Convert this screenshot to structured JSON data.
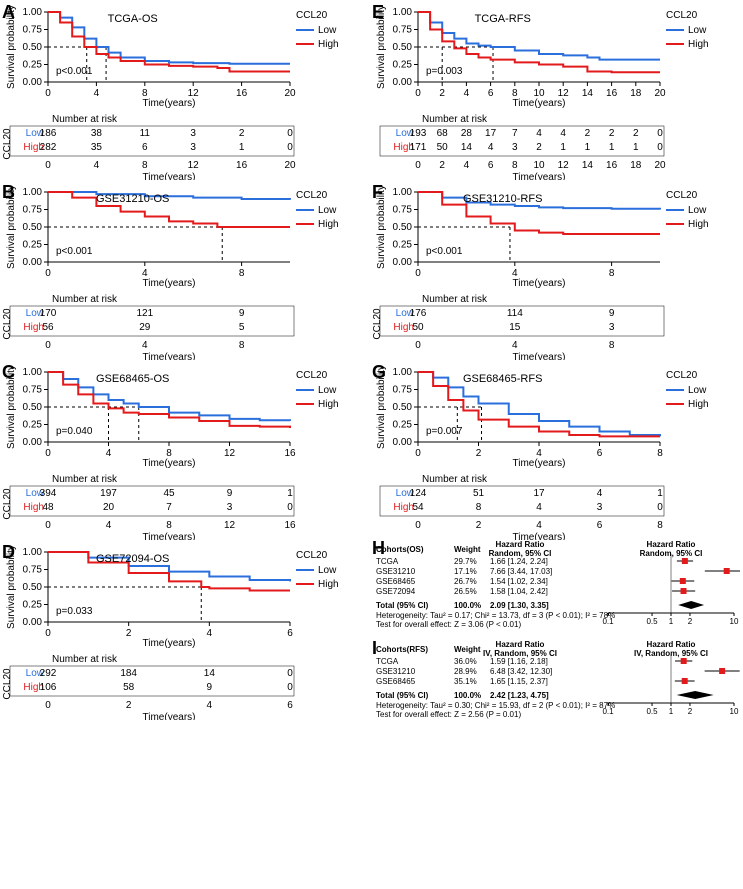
{
  "colors": {
    "low": "#2a6fdb",
    "high": "#e31a1c",
    "black": "#000000",
    "grey": "#808080"
  },
  "panels": {
    "A": {
      "letter": "A",
      "title": "TCGA-OS",
      "legend_title": "CCL20",
      "legend_low": "Low",
      "legend_high": "High",
      "pvalue": "p<0.001",
      "xlabel": "Time(years)",
      "ylabel": "Survival probability",
      "xlim": [
        0,
        20
      ],
      "xticks": [
        0,
        4,
        8,
        12,
        16,
        20
      ],
      "ylim": [
        0,
        1
      ],
      "yticks": [
        0,
        0.25,
        0.5,
        0.75,
        1
      ],
      "low_curve": [
        [
          0,
          1
        ],
        [
          1,
          0.92
        ],
        [
          2,
          0.78
        ],
        [
          3,
          0.62
        ],
        [
          4,
          0.5
        ],
        [
          5,
          0.42
        ],
        [
          6,
          0.35
        ],
        [
          8,
          0.3
        ],
        [
          10,
          0.28
        ],
        [
          12,
          0.27
        ],
        [
          15,
          0.26
        ],
        [
          20,
          0.26
        ]
      ],
      "high_curve": [
        [
          0,
          1
        ],
        [
          1,
          0.85
        ],
        [
          2,
          0.65
        ],
        [
          3,
          0.5
        ],
        [
          4,
          0.4
        ],
        [
          5,
          0.35
        ],
        [
          6,
          0.3
        ],
        [
          8,
          0.25
        ],
        [
          10,
          0.23
        ],
        [
          12,
          0.22
        ],
        [
          14,
          0.2
        ],
        [
          15,
          0.15
        ],
        [
          20,
          0.15
        ]
      ],
      "risk_header": "Number at risk",
      "ccl20_label": "CCL20",
      "risk_low": [
        186,
        38,
        11,
        3,
        2,
        0
      ],
      "risk_high": [
        282,
        35,
        6,
        3,
        1,
        0
      ],
      "dash_x": [
        3.2,
        4.8
      ],
      "dash_y": 0.5
    },
    "B": {
      "letter": "B",
      "title": "GSE31210-OS",
      "legend_title": "CCL20",
      "legend_low": "Low",
      "legend_high": "High",
      "pvalue": "p<0.001",
      "xlabel": "Time(years)",
      "ylabel": "Survival probability",
      "xlim": [
        0,
        10
      ],
      "xticks": [
        0,
        4,
        8
      ],
      "ylim": [
        0,
        1
      ],
      "yticks": [
        0,
        0.25,
        0.5,
        0.75,
        1
      ],
      "low_curve": [
        [
          0,
          1
        ],
        [
          2,
          0.97
        ],
        [
          4,
          0.94
        ],
        [
          6,
          0.92
        ],
        [
          8,
          0.9
        ],
        [
          10,
          0.89
        ]
      ],
      "high_curve": [
        [
          0,
          1
        ],
        [
          1,
          0.92
        ],
        [
          2,
          0.8
        ],
        [
          3,
          0.72
        ],
        [
          4,
          0.65
        ],
        [
          5,
          0.58
        ],
        [
          6,
          0.55
        ],
        [
          7,
          0.5
        ],
        [
          8,
          0.5
        ],
        [
          10,
          0.5
        ]
      ],
      "risk_header": "Number at risk",
      "ccl20_label": "CCL20",
      "risk_low": [
        170,
        121,
        9
      ],
      "risk_high": [
        56,
        29,
        5
      ],
      "dash_x": [
        7.2
      ],
      "dash_y": 0.5
    },
    "C": {
      "letter": "C",
      "title": "GSE68465-OS",
      "legend_title": "CCL20",
      "legend_low": "Low",
      "legend_high": "High",
      "pvalue": "p=0.040",
      "xlabel": "Time(years)",
      "ylabel": "Survival probability",
      "xlim": [
        0,
        16
      ],
      "xticks": [
        0,
        4,
        8,
        12,
        16
      ],
      "ylim": [
        0,
        1
      ],
      "yticks": [
        0,
        0.25,
        0.5,
        0.75,
        1
      ],
      "low_curve": [
        [
          0,
          1
        ],
        [
          1,
          0.9
        ],
        [
          2,
          0.78
        ],
        [
          3,
          0.68
        ],
        [
          4,
          0.6
        ],
        [
          5,
          0.55
        ],
        [
          6,
          0.5
        ],
        [
          8,
          0.42
        ],
        [
          10,
          0.38
        ],
        [
          12,
          0.33
        ],
        [
          14,
          0.31
        ],
        [
          16,
          0.3
        ]
      ],
      "high_curve": [
        [
          0,
          1
        ],
        [
          1,
          0.82
        ],
        [
          2,
          0.68
        ],
        [
          3,
          0.55
        ],
        [
          4,
          0.48
        ],
        [
          5,
          0.42
        ],
        [
          6,
          0.4
        ],
        [
          8,
          0.35
        ],
        [
          10,
          0.3
        ],
        [
          12,
          0.23
        ],
        [
          14,
          0.22
        ],
        [
          16,
          0.2
        ]
      ],
      "risk_header": "Number at risk",
      "ccl20_label": "CCL20",
      "risk_low": [
        394,
        197,
        45,
        9,
        1
      ],
      "risk_high": [
        48,
        20,
        7,
        3,
        0
      ],
      "dash_x": [
        4,
        6
      ],
      "dash_y": 0.5
    },
    "D": {
      "letter": "D",
      "title": "GSE72094-OS",
      "legend_title": "CCL20",
      "legend_low": "Low",
      "legend_high": "High",
      "pvalue": "p=0.033",
      "xlabel": "Time(years)",
      "ylabel": "Survival probability",
      "xlim": [
        0,
        6
      ],
      "xticks": [
        0,
        2,
        4,
        6
      ],
      "ylim": [
        0,
        1
      ],
      "yticks": [
        0,
        0.25,
        0.5,
        0.75,
        1
      ],
      "low_curve": [
        [
          0,
          1
        ],
        [
          1,
          0.92
        ],
        [
          2,
          0.8
        ],
        [
          3,
          0.72
        ],
        [
          4,
          0.65
        ],
        [
          5,
          0.6
        ],
        [
          6,
          0.58
        ]
      ],
      "high_curve": [
        [
          0,
          1
        ],
        [
          1,
          0.85
        ],
        [
          2,
          0.7
        ],
        [
          3,
          0.58
        ],
        [
          3.8,
          0.5
        ],
        [
          4,
          0.48
        ],
        [
          5,
          0.45
        ],
        [
          6,
          0.45
        ]
      ],
      "risk_header": "Number at risk",
      "ccl20_label": "CCL20",
      "risk_low": [
        292,
        184,
        14,
        0
      ],
      "risk_high": [
        106,
        58,
        9,
        0
      ],
      "dash_x": [
        3.8
      ],
      "dash_y": 0.5
    },
    "E": {
      "letter": "E",
      "title": "TCGA-RFS",
      "legend_title": "CCL20",
      "legend_low": "Low",
      "legend_high": "High",
      "pvalue": "p=0.003",
      "xlabel": "Time(years)",
      "ylabel": "Survival probability",
      "xlim": [
        0,
        20
      ],
      "xticks": [
        0,
        2,
        4,
        6,
        8,
        10,
        12,
        14,
        16,
        18,
        20
      ],
      "ylim": [
        0,
        1
      ],
      "yticks": [
        0,
        0.25,
        0.5,
        0.75,
        1
      ],
      "low_curve": [
        [
          0,
          1
        ],
        [
          1,
          0.85
        ],
        [
          2,
          0.7
        ],
        [
          3,
          0.62
        ],
        [
          4,
          0.55
        ],
        [
          5,
          0.52
        ],
        [
          6,
          0.5
        ],
        [
          8,
          0.45
        ],
        [
          10,
          0.4
        ],
        [
          12,
          0.38
        ],
        [
          14,
          0.35
        ],
        [
          15,
          0.32
        ],
        [
          20,
          0.32
        ]
      ],
      "high_curve": [
        [
          0,
          1
        ],
        [
          1,
          0.75
        ],
        [
          2,
          0.58
        ],
        [
          3,
          0.48
        ],
        [
          4,
          0.4
        ],
        [
          5,
          0.35
        ],
        [
          6,
          0.32
        ],
        [
          8,
          0.28
        ],
        [
          10,
          0.25
        ],
        [
          12,
          0.22
        ],
        [
          14,
          0.15
        ],
        [
          16,
          0.14
        ],
        [
          20,
          0.14
        ]
      ],
      "risk_header": "Number at risk",
      "ccl20_label": "",
      "risk_low": [
        193,
        68,
        28,
        17,
        7,
        4,
        4,
        2,
        2,
        2,
        0
      ],
      "risk_high": [
        171,
        50,
        14,
        4,
        3,
        2,
        1,
        1,
        1,
        1,
        0
      ],
      "dash_x": [
        2,
        6.2
      ],
      "dash_y": 0.5
    },
    "F": {
      "letter": "F",
      "title": "GSE31210-RFS",
      "legend_title": "CCL20",
      "legend_low": "Low",
      "legend_high": "High",
      "pvalue": "p<0.001",
      "xlabel": "Time(years)",
      "ylabel": "Survival probability",
      "xlim": [
        0,
        10
      ],
      "xticks": [
        0,
        4,
        8
      ],
      "ylim": [
        0,
        1
      ],
      "yticks": [
        0,
        0.25,
        0.5,
        0.75,
        1
      ],
      "low_curve": [
        [
          0,
          1
        ],
        [
          1,
          0.92
        ],
        [
          2,
          0.85
        ],
        [
          3,
          0.82
        ],
        [
          4,
          0.8
        ],
        [
          5,
          0.78
        ],
        [
          6,
          0.77
        ],
        [
          8,
          0.76
        ],
        [
          10,
          0.75
        ]
      ],
      "high_curve": [
        [
          0,
          1
        ],
        [
          1,
          0.82
        ],
        [
          2,
          0.65
        ],
        [
          3,
          0.55
        ],
        [
          4,
          0.45
        ],
        [
          5,
          0.42
        ],
        [
          6,
          0.4
        ],
        [
          8,
          0.4
        ],
        [
          10,
          0.4
        ]
      ],
      "risk_header": "Number at risk",
      "ccl20_label": "CCL20",
      "risk_low": [
        176,
        114,
        9
      ],
      "risk_high": [
        50,
        15,
        3
      ],
      "dash_x": [
        3.8
      ],
      "dash_y": 0.5
    },
    "G": {
      "letter": "G",
      "title": "GSE68465-RFS",
      "legend_title": "CCL20",
      "legend_low": "Low",
      "legend_high": "High",
      "pvalue": "p=0.007",
      "xlabel": "Time(years)",
      "ylabel": "Survival probability",
      "xlim": [
        0,
        8
      ],
      "xticks": [
        0,
        2,
        4,
        6,
        8
      ],
      "ylim": [
        0,
        1
      ],
      "yticks": [
        0,
        0.25,
        0.5,
        0.75,
        1
      ],
      "low_curve": [
        [
          0,
          1
        ],
        [
          0.5,
          0.92
        ],
        [
          1,
          0.78
        ],
        [
          1.5,
          0.65
        ],
        [
          2,
          0.55
        ],
        [
          3,
          0.4
        ],
        [
          4,
          0.3
        ],
        [
          5,
          0.22
        ],
        [
          6,
          0.15
        ],
        [
          7,
          0.1
        ],
        [
          8,
          0.08
        ]
      ],
      "high_curve": [
        [
          0,
          1
        ],
        [
          0.5,
          0.8
        ],
        [
          1,
          0.6
        ],
        [
          1.5,
          0.45
        ],
        [
          2,
          0.32
        ],
        [
          3,
          0.22
        ],
        [
          4,
          0.15
        ],
        [
          5,
          0.1
        ],
        [
          6,
          0.08
        ],
        [
          8,
          0.08
        ]
      ],
      "risk_header": "Number at risk",
      "ccl20_label": "",
      "risk_low": [
        124,
        51,
        17,
        4,
        1
      ],
      "risk_high": [
        54,
        8,
        4,
        3,
        0
      ],
      "dash_x": [
        1.3,
        2.1
      ],
      "dash_y": 0.5
    }
  },
  "forestH": {
    "letter": "H",
    "header_cohorts": "Cohorts(OS)",
    "header_weight": "Weight",
    "header_hr1": "Hazard Ratio",
    "header_hr1b": "Random, 95% CI",
    "header_hr2": "Hazard Ratio",
    "header_hr2b": "Random, 95% CI",
    "rows": [
      {
        "name": "TCGA",
        "weight": "29.7%",
        "hr": "1.66 [1.24,  2.24]",
        "est": 1.66,
        "lo": 1.24,
        "hi": 2.24
      },
      {
        "name": "GSE31210",
        "weight": "17.1%",
        "hr": "7.66 [3.44, 17.03]",
        "est": 7.66,
        "lo": 3.44,
        "hi": 17.03
      },
      {
        "name": "GSE68465",
        "weight": "26.7%",
        "hr": "1.54 [1.02,  2.34]",
        "est": 1.54,
        "lo": 1.02,
        "hi": 2.34
      },
      {
        "name": "GSE72094",
        "weight": "26.5%",
        "hr": "1.58 [1.04,  2.42]",
        "est": 1.58,
        "lo": 1.04,
        "hi": 2.42
      }
    ],
    "total_label": "Total (95% CI)",
    "total_weight": "100.0%",
    "total_hr": "2.09 [1.30,  3.35]",
    "total_est": 2.09,
    "total_lo": 1.3,
    "total_hi": 3.35,
    "het": "Heterogeneity: Tau² = 0.17; Chi² = 13.73, df = 3 (P < 0.01); I² = 78%",
    "overall": "Test for overall effect: Z = 3.06 (P < 0.01)",
    "xticks": [
      0.1,
      0.5,
      1,
      2,
      10
    ]
  },
  "forestI": {
    "letter": "I",
    "header_cohorts": "Cohorts(RFS)",
    "header_weight": "Weight",
    "header_hr1": "Hazard Ratio",
    "header_hr1b": "IV, Random, 95% CI",
    "header_hr2": "Hazard Ratio",
    "header_hr2b": "IV, Random, 95% CI",
    "rows": [
      {
        "name": "TCGA",
        "weight": "36.0%",
        "hr": "1.59 [1.16,  2.18]",
        "est": 1.59,
        "lo": 1.16,
        "hi": 2.18
      },
      {
        "name": "GSE31210",
        "weight": "28.9%",
        "hr": "6.48 [3.42, 12.30]",
        "est": 6.48,
        "lo": 3.42,
        "hi": 12.3
      },
      {
        "name": "GSE68465",
        "weight": "35.1%",
        "hr": "1.65 [1.15,  2.37]",
        "est": 1.65,
        "lo": 1.15,
        "hi": 2.37
      }
    ],
    "total_label": "Total (95% CI)",
    "total_weight": "100.0%",
    "total_hr": "2.42 [1.23,  4.75]",
    "total_est": 2.42,
    "total_lo": 1.23,
    "total_hi": 4.75,
    "het": "Heterogeneity: Tau² = 0.30; Chi² = 15.93, df = 2 (P < 0.01); I² = 87%",
    "overall": "Test for overall effect: Z = 2.56 (P = 0.01)",
    "xticks": [
      0.1,
      0.5,
      1,
      2,
      10
    ]
  }
}
